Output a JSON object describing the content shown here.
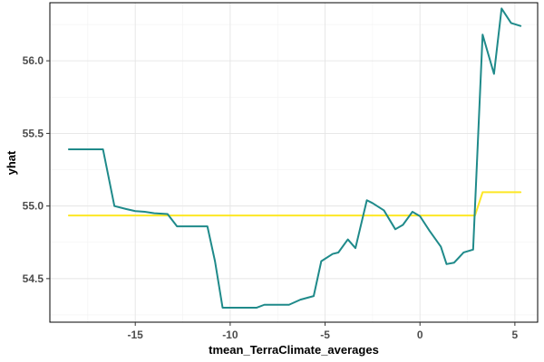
{
  "chart_data": {
    "type": "line",
    "title": "",
    "xlabel": "tmean_TerraClimate_averages",
    "ylabel": "yhat",
    "xlim": [
      -19.5,
      6.2
    ],
    "ylim": [
      54.2,
      56.4
    ],
    "xticks": [
      -15,
      -10,
      -5,
      0,
      5
    ],
    "xtick_labels": [
      "-15",
      "-10",
      "-5",
      "0",
      "5"
    ],
    "yticks": [
      54.5,
      55.0,
      55.5,
      56.0
    ],
    "ytick_labels": [
      "54.5",
      "55.0",
      "55.5",
      "56.0"
    ],
    "grid": true,
    "legend": "none",
    "series": [
      {
        "color": "#1f8a8a",
        "points": [
          [
            -18.5,
            55.39
          ],
          [
            -16.7,
            55.39
          ],
          [
            -16.1,
            55.0
          ],
          [
            -15.5,
            54.98
          ],
          [
            -15.0,
            54.965
          ],
          [
            -14.5,
            54.96
          ],
          [
            -14.0,
            54.95
          ],
          [
            -13.3,
            54.945
          ],
          [
            -12.8,
            54.86
          ],
          [
            -11.2,
            54.86
          ],
          [
            -10.8,
            54.62
          ],
          [
            -10.4,
            54.3
          ],
          [
            -9.0,
            54.3
          ],
          [
            -8.6,
            54.3
          ],
          [
            -8.2,
            54.32
          ],
          [
            -7.3,
            54.32
          ],
          [
            -6.9,
            54.32
          ],
          [
            -6.3,
            54.355
          ],
          [
            -5.6,
            54.38
          ],
          [
            -5.2,
            54.62
          ],
          [
            -4.6,
            54.67
          ],
          [
            -4.3,
            54.68
          ],
          [
            -3.8,
            54.77
          ],
          [
            -3.4,
            54.71
          ],
          [
            -2.8,
            55.04
          ],
          [
            -2.5,
            55.02
          ],
          [
            -1.9,
            54.97
          ],
          [
            -1.3,
            54.84
          ],
          [
            -0.9,
            54.87
          ],
          [
            -0.4,
            54.96
          ],
          [
            0.0,
            54.93
          ],
          [
            0.5,
            54.83
          ],
          [
            1.1,
            54.72
          ],
          [
            1.4,
            54.6
          ],
          [
            1.8,
            54.61
          ],
          [
            2.3,
            54.68
          ],
          [
            2.8,
            54.7
          ],
          [
            3.3,
            56.18
          ],
          [
            3.9,
            55.91
          ],
          [
            4.3,
            56.36
          ],
          [
            4.8,
            56.26
          ],
          [
            5.3,
            56.24
          ]
        ]
      },
      {
        "color": "#fde725",
        "points": [
          [
            -18.5,
            54.935
          ],
          [
            2.9,
            54.935
          ],
          [
            3.3,
            55.095
          ],
          [
            5.3,
            55.095
          ]
        ]
      }
    ]
  }
}
